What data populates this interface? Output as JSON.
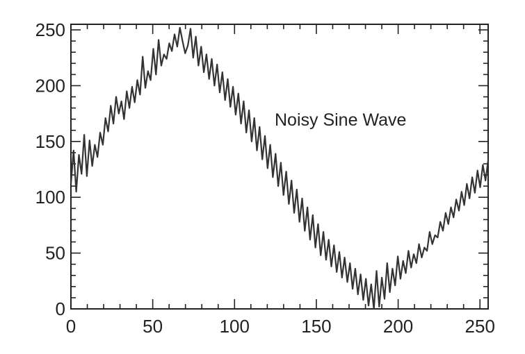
{
  "chart_data": {
    "type": "line",
    "title": "",
    "xlabel": "",
    "ylabel": "",
    "xlim": [
      0,
      255
    ],
    "ylim": [
      0,
      255
    ],
    "x_ticks": [
      0,
      50,
      100,
      150,
      200,
      250
    ],
    "y_ticks": [
      0,
      50,
      100,
      150,
      200,
      250
    ],
    "grid": false,
    "annotation": "Noisy Sine Wave",
    "line_color": "#333333",
    "series": [
      {
        "values": [
          112,
          142,
          105,
          138,
          121,
          156,
          119,
          151,
          128,
          147,
          136,
          158,
          147,
          171,
          159,
          182,
          166,
          190,
          175,
          186,
          170,
          195,
          180,
          199,
          185,
          205,
          192,
          226,
          198,
          213,
          205,
          233,
          210,
          241,
          218,
          228,
          224,
          238,
          231,
          246,
          235,
          252,
          240,
          229,
          236,
          251,
          225,
          244,
          218,
          235,
          212,
          228,
          206,
          224,
          200,
          219,
          194,
          212,
          187,
          206,
          181,
          199,
          174,
          193,
          166,
          186,
          158,
          178,
          150,
          171,
          142,
          163,
          134,
          155,
          126,
          147,
          118,
          139,
          110,
          131,
          102,
          123,
          94,
          115,
          86,
          107,
          78,
          99,
          70,
          91,
          62,
          84,
          55,
          76,
          48,
          69,
          44,
          62,
          38,
          57,
          33,
          51,
          28,
          46,
          24,
          41,
          18,
          36,
          13,
          31,
          8,
          27,
          3,
          22,
          0,
          34,
          2,
          28,
          9,
          41,
          15,
          36,
          21,
          47,
          27,
          43,
          32,
          52,
          37,
          49,
          41,
          58,
          46,
          55,
          52,
          69,
          58,
          66,
          64,
          78,
          70,
          86,
          76,
          91,
          82,
          98,
          88,
          105,
          93,
          112,
          99,
          118,
          104,
          124,
          109,
          129,
          115,
          133
        ]
      }
    ]
  }
}
